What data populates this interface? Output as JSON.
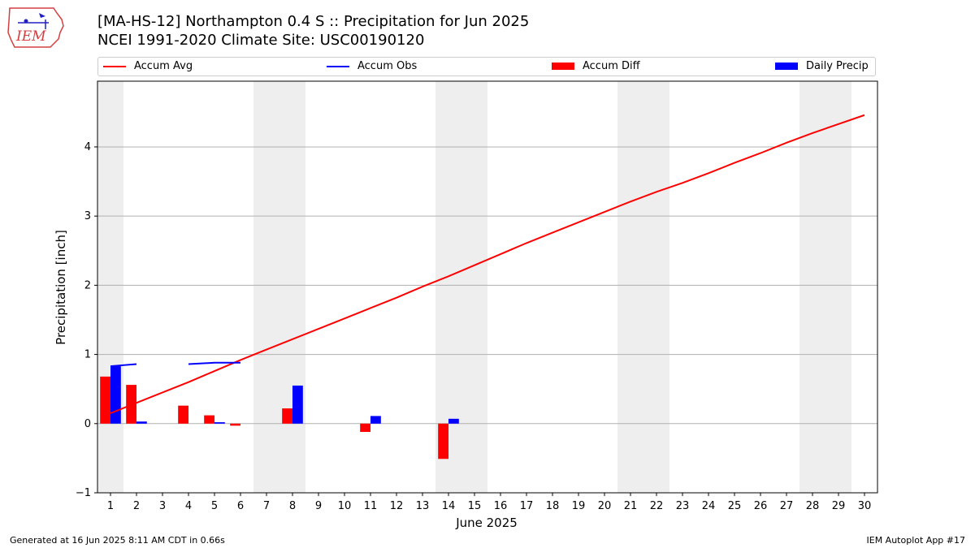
{
  "header": {
    "title_line1": "[MA-HS-12] Northampton 0.4 S :: Precipitation for Jun 2025",
    "title_line2": "NCEI 1991-2020 Climate Site: USC00190120"
  },
  "logo": {
    "text": "IEM",
    "icon": "iem-iowa-logo-icon"
  },
  "footer": {
    "left": "Generated at 16 Jun 2025 8:11 AM CDT in 0.66s",
    "right": "IEM Autoplot App #17"
  },
  "colors": {
    "accum_avg": "#ff0000",
    "accum_obs": "#0000ff",
    "accum_diff": "#ff0000",
    "daily_precip": "#0000ff",
    "weekend_shade": "#eeeeee",
    "grid": "#b0b0b0"
  },
  "legend": [
    {
      "label": "Accum Avg",
      "type": "line",
      "color": "#ff0000"
    },
    {
      "label": "Accum Obs",
      "type": "line",
      "color": "#0000ff"
    },
    {
      "label": "Accum Diff",
      "type": "box",
      "color": "#ff0000"
    },
    {
      "label": "Daily Precip",
      "type": "box",
      "color": "#0000ff"
    }
  ],
  "chart_data": {
    "type": "bar",
    "title": "[MA-HS-12] Northampton 0.4 S :: Precipitation for Jun 2025",
    "xlabel": "June 2025",
    "ylabel": "Precipitation [inch]",
    "xlim": [
      0.5,
      30.5
    ],
    "ylim": [
      -1,
      4.95
    ],
    "x_ticks": [
      1,
      2,
      3,
      4,
      5,
      6,
      7,
      8,
      9,
      10,
      11,
      12,
      13,
      14,
      15,
      16,
      17,
      18,
      19,
      20,
      21,
      22,
      23,
      24,
      25,
      26,
      27,
      28,
      29,
      30
    ],
    "y_ticks": [
      -1,
      0,
      1,
      2,
      3,
      4
    ],
    "grid": "y",
    "legend_position": "top",
    "weekend_shading": [
      [
        0.5,
        1.5
      ],
      [
        6.5,
        8.5
      ],
      [
        13.5,
        15.5
      ],
      [
        20.5,
        22.5
      ],
      [
        27.5,
        29.5
      ]
    ],
    "series": [
      {
        "name": "Accum Avg",
        "type": "line",
        "x": [
          1,
          2,
          3,
          4,
          5,
          6,
          7,
          8,
          9,
          10,
          11,
          12,
          13,
          14,
          15,
          16,
          17,
          18,
          19,
          20,
          21,
          22,
          23,
          24,
          25,
          26,
          27,
          28,
          29,
          30
        ],
        "values": [
          0.15,
          0.3,
          0.45,
          0.6,
          0.76,
          0.92,
          1.07,
          1.22,
          1.37,
          1.52,
          1.67,
          1.82,
          1.98,
          2.13,
          2.29,
          2.45,
          2.61,
          2.76,
          2.91,
          3.06,
          3.21,
          3.35,
          3.48,
          3.62,
          3.77,
          3.91,
          4.06,
          4.2,
          4.33,
          4.46
        ]
      },
      {
        "name": "Accum Obs",
        "type": "line",
        "segments": [
          {
            "x": [
              1,
              2
            ],
            "values": [
              0.83,
              0.86
            ]
          },
          {
            "x": [
              4,
              5,
              6
            ],
            "values": [
              0.86,
              0.88,
              0.88
            ]
          }
        ]
      },
      {
        "name": "Accum Diff",
        "type": "bar",
        "x": [
          1,
          2,
          4,
          5,
          6,
          8,
          11,
          14
        ],
        "values": [
          0.68,
          0.56,
          0.26,
          0.12,
          -0.03,
          0.22,
          -0.12,
          -0.51
        ]
      },
      {
        "name": "Daily Precip",
        "type": "bar",
        "x": [
          1,
          2,
          5,
          8,
          11,
          14
        ],
        "values": [
          0.83,
          0.03,
          0.02,
          0.55,
          0.11,
          0.07
        ]
      }
    ]
  }
}
